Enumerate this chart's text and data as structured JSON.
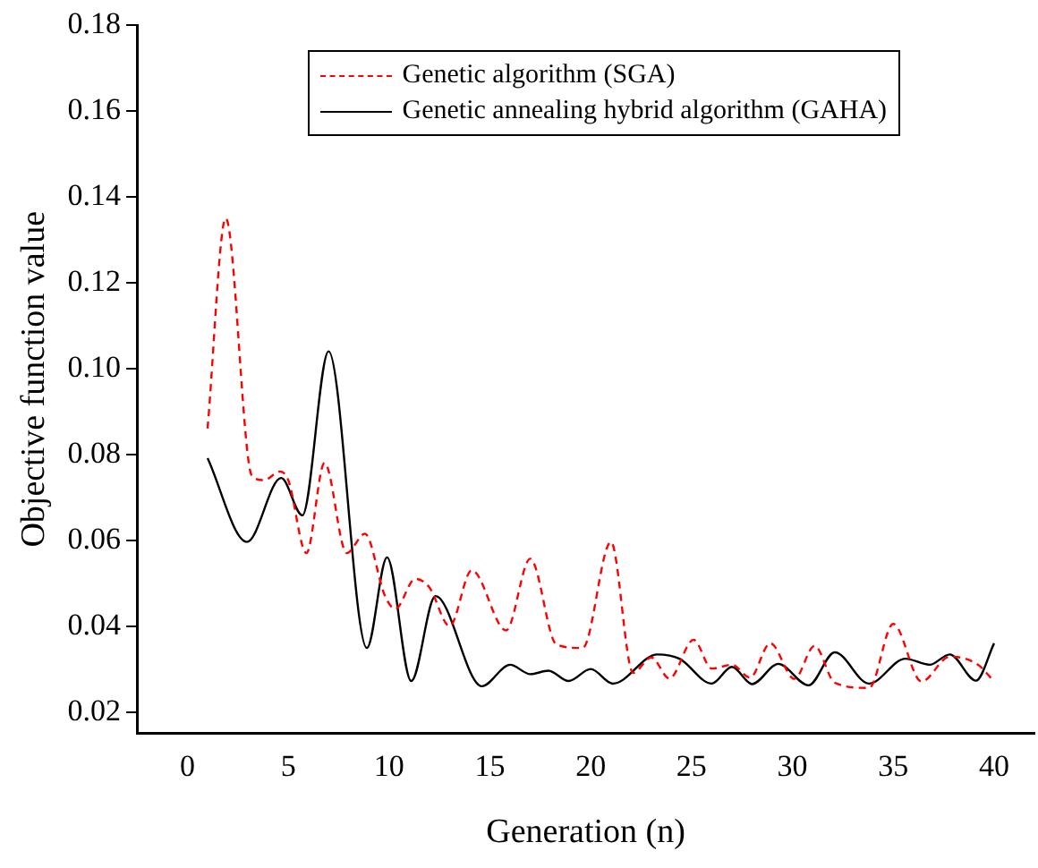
{
  "chart_data": {
    "type": "line",
    "xlabel": "Generation (n)",
    "ylabel": "Objective function value",
    "xlim": [
      -2.5,
      42
    ],
    "xticks": [
      0,
      5,
      10,
      15,
      20,
      25,
      30,
      35,
      40
    ],
    "ylim": [
      0.015,
      0.18
    ],
    "yticks": [
      0.02,
      0.04,
      0.06,
      0.08,
      {
        "value": 0.1,
        "label": "0.10"
      },
      0.12,
      0.14,
      0.16,
      0.18
    ],
    "grid": false,
    "legend": "top",
    "marker": "none",
    "series": [
      {
        "name": "Genetic algorithm (SGA)",
        "color": "#ff0000",
        "line_style": "dashed",
        "x": [
          1,
          1.9,
          3.2,
          3.8,
          4.6,
          5.0,
          5.9,
          6.8,
          7.9,
          8.8,
          9.8,
          10.3,
          11.3,
          12.0,
          13.0,
          14.1,
          15.8,
          17.0,
          18.3,
          19.6,
          21.0,
          22.1,
          23.0,
          23.9,
          25.1,
          26.0,
          27.0,
          27.9,
          28.9,
          30.1,
          31.1,
          32.1,
          33.8,
          35.0,
          36.4,
          37.8,
          39.2,
          40
        ],
        "values": [
          0.086,
          0.135,
          0.075,
          0.074,
          0.076,
          0.074,
          0.057,
          0.078,
          0.057,
          0.0615,
          0.047,
          0.044,
          0.051,
          0.049,
          0.04,
          0.053,
          0.039,
          0.0557,
          0.0357,
          0.0349,
          0.0596,
          0.0291,
          0.0327,
          0.0278,
          0.0368,
          0.0301,
          0.031,
          0.028,
          0.036,
          0.0277,
          0.0354,
          0.0268,
          0.0256,
          0.0405,
          0.0271,
          0.0329,
          0.031,
          0.0271
        ]
      },
      {
        "name": "Genetic annealing hybrid algorithm (GAHA)",
        "color": "#000000",
        "line_style": "solid",
        "x": [
          1,
          2.95,
          4.65,
          5.7,
          7.0,
          8.9,
          9.9,
          11.1,
          12.3,
          14.6,
          16.0,
          17.0,
          17.9,
          18.9,
          20.0,
          21.1,
          23.3,
          24.4,
          26.0,
          27.0,
          28.0,
          29.3,
          30.8,
          32.1,
          33.8,
          35.6,
          36.8,
          37.8,
          39.1,
          40
        ],
        "values": [
          0.0791,
          0.0596,
          0.0745,
          0.0658,
          0.104,
          0.0349,
          0.056,
          0.0272,
          0.047,
          0.026,
          0.031,
          0.0288,
          0.0296,
          0.0272,
          0.03,
          0.0266,
          0.0334,
          0.0324,
          0.0266,
          0.0305,
          0.0265,
          0.0312,
          0.0262,
          0.0339,
          0.0266,
          0.0324,
          0.031,
          0.0334,
          0.0273,
          0.036
        ]
      }
    ]
  }
}
